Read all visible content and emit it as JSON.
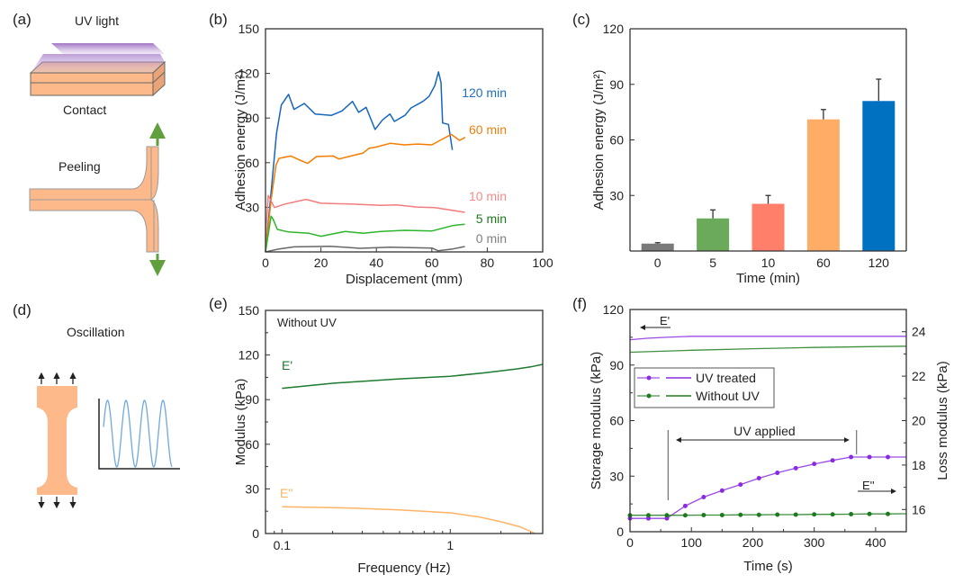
{
  "panels": {
    "a": {
      "tag": "(a)",
      "uv_label": "UV light",
      "contact_label": "Contact",
      "peeling_label": "Peeling"
    },
    "d": {
      "tag": "(d)",
      "oscillation_label": "Oscillation"
    }
  },
  "colors": {
    "sample": "#fdb98a",
    "uv": "#8e5bb8",
    "arrow_green": "#5fa03c",
    "wave": "#6fa8dc"
  },
  "chart_data": [
    {
      "id": "b",
      "tag": "(b)",
      "type": "line",
      "title": "",
      "xlabel": "Displacement (mm)",
      "ylabel": "Adhesion energy (J/m²)",
      "xlim": [
        0,
        100
      ],
      "ylim": [
        0,
        150
      ],
      "xticks": [
        0,
        20,
        40,
        60,
        80,
        100
      ],
      "yticks": [
        30,
        60,
        90,
        120,
        150
      ],
      "grid": false,
      "legend": "inline-right",
      "series": [
        {
          "name": "120 min",
          "color": "#1565c0",
          "label_color": "#1f6fbf",
          "x": [
            0,
            2,
            4,
            5.7,
            8.3,
            10.3,
            14,
            17.9,
            23.8,
            27.6,
            31.4,
            33.6,
            36.3,
            39.5,
            42.2,
            44.9,
            46.5,
            50.3,
            52.5,
            56.8,
            59,
            61.1,
            62.4,
            63.3,
            63.9,
            66,
            67.4
          ],
          "y": [
            0,
            40,
            80,
            98.8,
            105.9,
            95.8,
            99.8,
            92.7,
            91.8,
            94.8,
            101.2,
            93.8,
            97.2,
            82.3,
            88.7,
            92.7,
            87.7,
            91.8,
            96.8,
            101.2,
            104.5,
            111.9,
            121,
            113.9,
            86.7,
            85.7,
            68.5
          ]
        },
        {
          "name": "60 min",
          "color": "#f57c00",
          "label_color": "#f07f0e",
          "x": [
            0,
            2,
            3.8,
            4.9,
            9.2,
            11.9,
            15.2,
            18.4,
            24.4,
            26.5,
            30.8,
            35.2,
            37.3,
            40,
            45,
            50,
            55,
            60,
            63,
            67,
            70,
            72
          ],
          "y": [
            0,
            35,
            58.5,
            62.9,
            64.5,
            62.1,
            59.5,
            64.1,
            64.5,
            62.5,
            64.5,
            66.5,
            69.6,
            70.5,
            73,
            72,
            72.5,
            72,
            75,
            79,
            75,
            77
          ]
        },
        {
          "name": "10 min",
          "color": "#f47c7c",
          "label_color": "#f58a8a",
          "x": [
            0,
            1,
            3.2,
            7,
            14.6,
            20,
            30.8,
            41.7,
            47.1,
            54.6,
            61.1,
            71.9
          ],
          "y": [
            10,
            38,
            29.8,
            32.2,
            35.3,
            32.7,
            32.2,
            31.3,
            31.6,
            30.2,
            29.8,
            26.6
          ]
        },
        {
          "name": "5 min",
          "color": "#2db52d",
          "label_color": "#1e7a1e",
          "x": [
            0,
            2,
            2.7,
            4.3,
            8.1,
            15.7,
            20,
            28.7,
            35.2,
            41.7,
            50.3,
            60.1,
            67.6,
            71.9
          ],
          "y": [
            0,
            24,
            22.2,
            15.1,
            13.5,
            12.5,
            10.5,
            13.7,
            12.5,
            13.7,
            14.5,
            14.1,
            17.7,
            18.6
          ]
        },
        {
          "name": "0 min",
          "color": "#666666",
          "label_color": "#808080",
          "x": [
            0,
            4.9,
            10.3,
            23.3,
            34.1,
            44.9,
            60.1,
            62.2,
            67.6,
            71.9
          ],
          "y": [
            0,
            2,
            3.4,
            3.8,
            2.4,
            3.2,
            2.6,
            0.8,
            2,
            3.6
          ]
        }
      ]
    },
    {
      "id": "c",
      "tag": "(c)",
      "type": "bar",
      "title": "",
      "xlabel": "Time (min)",
      "ylabel": "Adhesion energy (J/m²)",
      "ylim": [
        0,
        120
      ],
      "yticks": [
        30,
        60,
        90,
        120
      ],
      "grid": false,
      "categories": [
        "0",
        "5",
        "10",
        "60",
        "120"
      ],
      "values": [
        4,
        17.6,
        25.5,
        71.1,
        81
      ],
      "error_upper": [
        4.5,
        22.2,
        30,
        76.4,
        92.8
      ],
      "colors": [
        "#7a7a7a",
        "#6aaa5a",
        "#ff7f6a",
        "#ffad66",
        "#0070c0"
      ]
    },
    {
      "id": "e",
      "tag": "(e)",
      "type": "line",
      "title": "",
      "annotation": "Without UV",
      "xlabel": "Frequency (Hz)",
      "ylabel": "Modulus (kPa)",
      "xscale": "log",
      "xlim": [
        0.1,
        3.54
      ],
      "ylim": [
        0,
        150
      ],
      "xticks": [
        0.1,
        1
      ],
      "xtick_labels": [
        "0.1",
        "1"
      ],
      "yticks": [
        0,
        30,
        60,
        90,
        120,
        150
      ],
      "grid": false,
      "legend": "inline",
      "series": [
        {
          "name": "E'",
          "color": "#1e7a2e",
          "x": [
            0.1,
            0.2,
            0.5,
            1,
            1.6,
            2.5,
            3.0,
            3.54
          ],
          "y": [
            97.6,
            101,
            104,
            105.7,
            108,
            110.7,
            112,
            113.7
          ]
        },
        {
          "name": "E\"",
          "color": "#ffb366",
          "x": [
            0.1,
            0.26,
            0.5,
            1,
            1.5,
            2,
            2.6,
            3.2
          ],
          "y": [
            18,
            17.1,
            15.9,
            13.9,
            11,
            7.9,
            4.5,
            0
          ]
        }
      ]
    },
    {
      "id": "f",
      "tag": "(f)",
      "type": "line",
      "title": "",
      "xlabel": "Time (s)",
      "ylabel": "Storage modulus (kPa)",
      "ylabel_right": "Loss modulus (kPa)",
      "xlim": [
        0,
        450
      ],
      "ylim": [
        0,
        120
      ],
      "ylim_right": [
        15,
        25
      ],
      "xticks": [
        0,
        100,
        200,
        300,
        400
      ],
      "yticks": [
        0,
        30,
        60,
        90,
        120
      ],
      "yticks_right": [
        16,
        18,
        20,
        22,
        24
      ],
      "grid": false,
      "legend": "upper-left",
      "legend_entries": [
        "UV treated",
        "Without UV"
      ],
      "annotations": {
        "e_prime": "E'",
        "e_double_prime": "E''",
        "uv_applied": "UV applied",
        "uv_start_s": 62,
        "uv_end_s": 369
      },
      "series": [
        {
          "name": "UV treated",
          "quantity": "E'",
          "axis": "left",
          "color": "#8a2be2",
          "x": [
            0,
            30,
            60,
            100,
            150,
            200,
            300,
            450
          ],
          "y": [
            103.7,
            104.5,
            105,
            105.5,
            105.5,
            105.5,
            105.5,
            105.5
          ]
        },
        {
          "name": "Without UV",
          "quantity": "E'",
          "axis": "left",
          "color": "#1e7a1e",
          "x": [
            0,
            100,
            200,
            300,
            400,
            450
          ],
          "y": [
            96.9,
            98,
            98.8,
            99.5,
            100,
            100.2
          ]
        },
        {
          "name": "UV treated",
          "quantity": "E''",
          "axis": "right",
          "color": "#8a2be2",
          "markers": true,
          "x": [
            0,
            30,
            60,
            90,
            120,
            150,
            180,
            210,
            240,
            270,
            300,
            330,
            360,
            390,
            420,
            450
          ],
          "y": [
            15.6,
            15.6,
            15.6,
            16.16,
            16.56,
            16.85,
            17.12,
            17.41,
            17.65,
            17.86,
            18.05,
            18.21,
            18.36,
            18.36,
            18.36,
            18.36
          ]
        },
        {
          "name": "Without UV",
          "quantity": "E''",
          "axis": "right",
          "color": "#1e7a1e",
          "markers": true,
          "x": [
            0,
            30,
            60,
            90,
            120,
            150,
            180,
            210,
            240,
            270,
            300,
            330,
            360,
            390,
            420,
            450
          ],
          "y": [
            15.74,
            15.74,
            15.74,
            15.74,
            15.75,
            15.75,
            15.76,
            15.76,
            15.77,
            15.77,
            15.78,
            15.78,
            15.79,
            15.8,
            15.8,
            15.81
          ]
        }
      ]
    }
  ]
}
